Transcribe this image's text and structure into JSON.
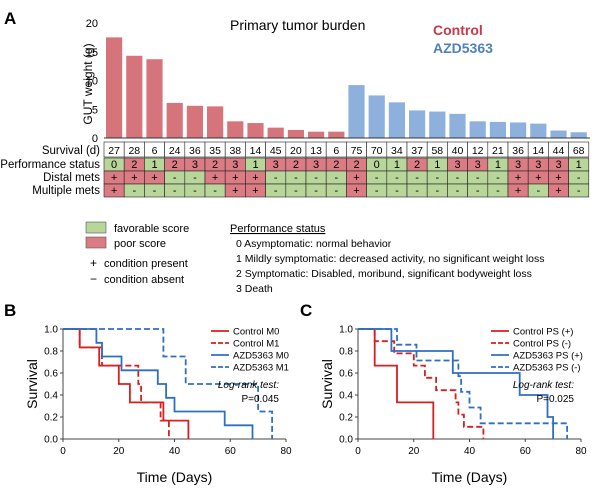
{
  "colors": {
    "control": "#d6747b",
    "azd": "#8eb0dc",
    "control_label": "#c8384a",
    "azd_label": "#4f81bd",
    "favorable": "#b8d59a",
    "poor": "#db7c84",
    "km_control": "#d91e1e",
    "km_azd": "#2e6fc4"
  },
  "panel_labels": {
    "a": "A",
    "b": "B",
    "c": "C"
  },
  "chart_data": [
    {
      "id": "A",
      "type": "bar",
      "title": "Primary tumor burden",
      "ylabel": "GUT weight (g)",
      "ylim": [
        0,
        20
      ],
      "yticks": [
        "0",
        "5",
        "10",
        "15",
        "20"
      ],
      "series": [
        {
          "name": "Control",
          "values": [
            17.5,
            14.3,
            13.7,
            6.1,
            5.6,
            5.5,
            2.9,
            2.6,
            1.8,
            1.4,
            1.1,
            1.1
          ]
        },
        {
          "name": "AZD5363",
          "values": [
            9.2,
            7.4,
            6.2,
            4.8,
            4.6,
            4.2,
            2.9,
            2.8,
            2.7,
            2.5,
            1.3,
            1.0
          ]
        }
      ],
      "table": {
        "rows": [
          {
            "label": "Survival (d)",
            "cells": [
              "27",
              "28",
              "6",
              "24",
              "36",
              "35",
              "38",
              "14",
              "45",
              "20",
              "13",
              "6",
              "75",
              "70",
              "34",
              "37",
              "58",
              "40",
              "12",
              "21",
              "36",
              "14",
              "44",
              "68"
            ]
          },
          {
            "label": "Performance status",
            "cells": [
              "0",
              "2",
              "1",
              "2",
              "3",
              "2",
              "3",
              "1",
              "3",
              "2",
              "3",
              "2",
              "2",
              "0",
              "1",
              "2",
              "1",
              "3",
              "3",
              "1",
              "3",
              "3",
              "3",
              "1"
            ],
            "colors": [
              "g",
              "r",
              "g",
              "r",
              "r",
              "r",
              "r",
              "g",
              "r",
              "r",
              "r",
              "r",
              "r",
              "g",
              "g",
              "r",
              "g",
              "r",
              "r",
              "g",
              "r",
              "r",
              "r",
              "g"
            ]
          },
          {
            "label": "Distal mets",
            "cells": [
              "+",
              "+",
              "+",
              "-",
              "-",
              "+",
              "+",
              "+",
              "-",
              "-",
              "-",
              "-",
              "+",
              "-",
              "-",
              "-",
              "-",
              "-",
              "-",
              "-",
              "+",
              "+",
              "+",
              "-"
            ]
          },
          {
            "label": "Multiple mets",
            "cells": [
              "+",
              "-",
              "-",
              "-",
              "-",
              "-",
              "+",
              "+",
              "-",
              "-",
              "-",
              "-",
              "+",
              "-",
              "-",
              "-",
              "-",
              "-",
              "-",
              "-",
              "+",
              "-",
              "+",
              "-"
            ]
          }
        ]
      },
      "legend": {
        "favorable": "favorable score",
        "poor": "poor score",
        "present": "condition present",
        "absent": "condition absent",
        "present_symbol": "+",
        "absent_symbol": "−"
      },
      "ps_title": "Performance status",
      "ps_items": [
        "0 Asymptomatic: normal behavior",
        "1 Mildly symptomatic: decreased activity, no  significant weight loss",
        "2 Symptomatic: Disabled, moribund, significant bodyweight loss",
        "3 Death"
      ]
    },
    {
      "id": "B",
      "type": "line",
      "xlabel": "Time (Days)",
      "ylabel": "Survival",
      "xlim": [
        0,
        80
      ],
      "ylim": [
        0,
        1
      ],
      "xticks": [
        "0",
        "20",
        "40",
        "60",
        "80"
      ],
      "yticks": [
        "0.0",
        "0.2",
        "0.4",
        "0.6",
        "0.8",
        "1.0"
      ],
      "annotation": [
        "Log-rank test:",
        "P=0.045"
      ],
      "series": [
        {
          "name": "Control M0",
          "color": "km_control",
          "dashed": false,
          "steps": [
            [
              0,
              1
            ],
            [
              6,
              1
            ],
            [
              6,
              0.833
            ],
            [
              13,
              0.833
            ],
            [
              13,
              0.667
            ],
            [
              20,
              0.667
            ],
            [
              20,
              0.5
            ],
            [
              24,
              0.5
            ],
            [
              24,
              0.333
            ],
            [
              36,
              0.333
            ],
            [
              36,
              0.167
            ],
            [
              45,
              0.167
            ],
            [
              45,
              0
            ]
          ]
        },
        {
          "name": "Control M1",
          "color": "km_control",
          "dashed": true,
          "steps": [
            [
              0,
              1
            ],
            [
              6,
              1
            ],
            [
              6,
              0.833
            ],
            [
              14,
              0.833
            ],
            [
              14,
              0.667
            ],
            [
              27,
              0.667
            ],
            [
              27,
              0.5
            ],
            [
              28,
              0.5
            ],
            [
              28,
              0.333
            ],
            [
              35,
              0.333
            ],
            [
              35,
              0.167
            ],
            [
              38,
              0.167
            ],
            [
              38,
              0
            ]
          ]
        },
        {
          "name": "AZD5363 M0",
          "color": "km_azd",
          "dashed": false,
          "steps": [
            [
              0,
              1
            ],
            [
              12,
              1
            ],
            [
              12,
              0.875
            ],
            [
              14,
              0.875
            ],
            [
              14,
              0.75
            ],
            [
              21,
              0.75
            ],
            [
              21,
              0.625
            ],
            [
              34,
              0.625
            ],
            [
              34,
              0.5
            ],
            [
              37,
              0.5
            ],
            [
              37,
              0.375
            ],
            [
              40,
              0.375
            ],
            [
              40,
              0.25
            ],
            [
              58,
              0.25
            ],
            [
              58,
              0.125
            ],
            [
              68,
              0.125
            ],
            [
              68,
              0
            ]
          ]
        },
        {
          "name": "AZD5363 M1",
          "color": "km_azd",
          "dashed": true,
          "steps": [
            [
              0,
              1
            ],
            [
              36,
              1
            ],
            [
              36,
              0.75
            ],
            [
              44,
              0.75
            ],
            [
              44,
              0.5
            ],
            [
              70,
              0.5
            ],
            [
              70,
              0.25
            ],
            [
              75,
              0.25
            ],
            [
              75,
              0
            ]
          ]
        }
      ]
    },
    {
      "id": "C",
      "type": "line",
      "xlabel": "Time (Days)",
      "ylabel": "Survival",
      "xlim": [
        0,
        80
      ],
      "ylim": [
        0,
        1
      ],
      "xticks": [
        "0",
        "20",
        "40",
        "60",
        "80"
      ],
      "yticks": [
        "0.0",
        "0.2",
        "0.4",
        "0.6",
        "0.8",
        "1.0"
      ],
      "annotation": [
        "Log-rank test:",
        "P=0.025"
      ],
      "series": [
        {
          "name": "Control PS (+)",
          "color": "km_control",
          "dashed": false,
          "steps": [
            [
              0,
              1
            ],
            [
              6,
              1
            ],
            [
              6,
              0.667
            ],
            [
              14,
              0.667
            ],
            [
              14,
              0.333
            ],
            [
              27,
              0.333
            ],
            [
              27,
              0
            ]
          ]
        },
        {
          "name": "Control PS (-)",
          "color": "km_control",
          "dashed": true,
          "steps": [
            [
              0,
              1
            ],
            [
              6,
              1
            ],
            [
              6,
              0.889
            ],
            [
              13,
              0.889
            ],
            [
              13,
              0.778
            ],
            [
              20,
              0.778
            ],
            [
              20,
              0.667
            ],
            [
              24,
              0.667
            ],
            [
              24,
              0.556
            ],
            [
              28,
              0.556
            ],
            [
              28,
              0.444
            ],
            [
              35,
              0.444
            ],
            [
              35,
              0.333
            ],
            [
              36,
              0.333
            ],
            [
              36,
              0.222
            ],
            [
              38,
              0.222
            ],
            [
              38,
              0.111
            ],
            [
              45,
              0.111
            ],
            [
              45,
              0
            ]
          ]
        },
        {
          "name": "AZD5363 PS (+)",
          "color": "km_azd",
          "dashed": false,
          "steps": [
            [
              0,
              1
            ],
            [
              12,
              1
            ],
            [
              12,
              0.8
            ],
            [
              34,
              0.8
            ],
            [
              34,
              0.6
            ],
            [
              58,
              0.6
            ],
            [
              58,
              0.4
            ],
            [
              68,
              0.4
            ],
            [
              68,
              0.2
            ],
            [
              70,
              0.2
            ],
            [
              70,
              0
            ]
          ]
        },
        {
          "name": "AZD5363 PS (-)",
          "color": "km_azd",
          "dashed": true,
          "steps": [
            [
              0,
              1
            ],
            [
              14,
              1
            ],
            [
              14,
              0.857
            ],
            [
              21,
              0.857
            ],
            [
              21,
              0.714
            ],
            [
              36,
              0.714
            ],
            [
              36,
              0.571
            ],
            [
              37,
              0.571
            ],
            [
              37,
              0.429
            ],
            [
              40,
              0.429
            ],
            [
              40,
              0.286
            ],
            [
              44,
              0.286
            ],
            [
              44,
              0.143
            ],
            [
              75,
              0.143
            ],
            [
              75,
              0
            ]
          ]
        }
      ]
    }
  ]
}
